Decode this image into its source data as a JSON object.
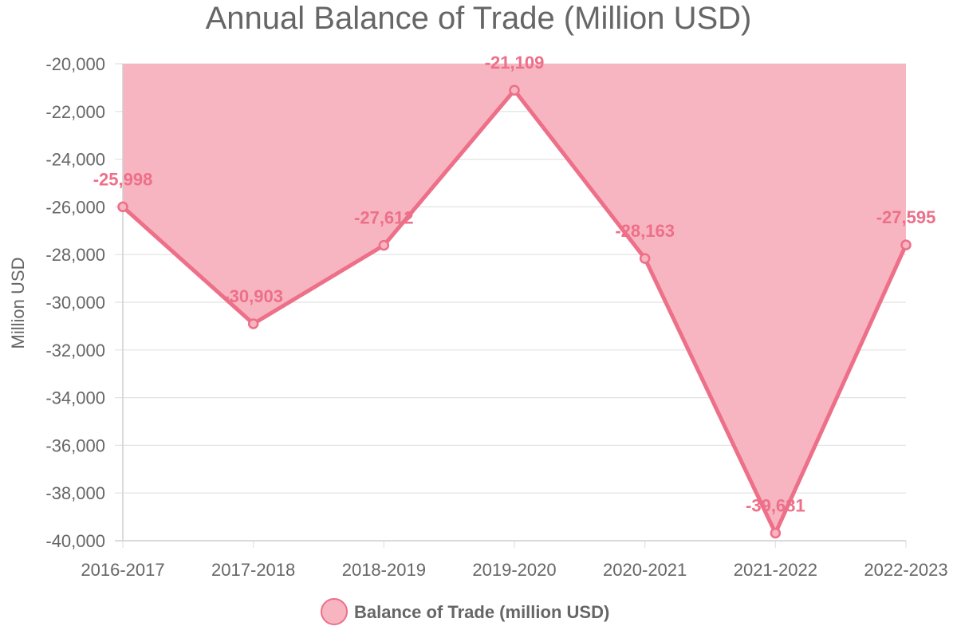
{
  "chart_data": {
    "type": "area",
    "title": "Annual Balance of Trade (Million USD)",
    "xlabel": "",
    "ylabel": "Million USD",
    "categories": [
      "2016-2017",
      "2017-2018",
      "2018-2019",
      "2019-2020",
      "2020-2021",
      "2021-2022",
      "2022-2023"
    ],
    "series": [
      {
        "name": "Balance of Trade (million USD)",
        "values": [
          -25998,
          -30903,
          -27612,
          -21109,
          -28163,
          -39681,
          -27595
        ],
        "data_labels": [
          "-25,998",
          "-30,903",
          "-27,612",
          "-21,109",
          "-28,163",
          "-39,681",
          "-27,595"
        ],
        "line_color": "#ed6f88",
        "fill_color": "#f7b5c2"
      }
    ],
    "ylim": [
      -40000,
      -20000
    ],
    "y_ticks": [
      -20000,
      -22000,
      -24000,
      -26000,
      -28000,
      -30000,
      -32000,
      -34000,
      -36000,
      -38000,
      -40000
    ],
    "y_tick_labels": [
      "-20,000",
      "-22,000",
      "-24,000",
      "-26,000",
      "-28,000",
      "-30,000",
      "-32,000",
      "-34,000",
      "-36,000",
      "-38,000",
      "-40,000"
    ],
    "fill_toward": "top",
    "grid": true,
    "legend_position": "bottom"
  }
}
